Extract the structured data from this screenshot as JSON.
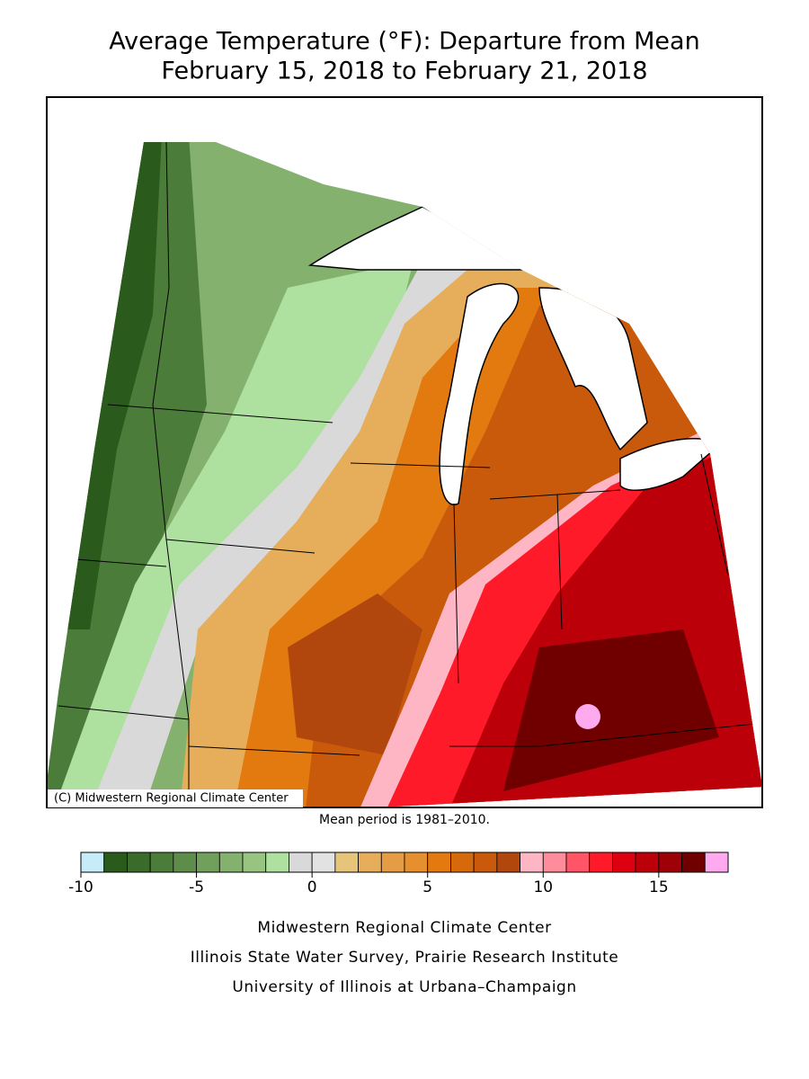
{
  "header": {
    "title": "Average Temperature (°F): Departure from Mean",
    "subtitle": "February 15, 2018 to February 21, 2018"
  },
  "map": {
    "copyright": "(C) Midwestern Regional Climate Center",
    "note": "Mean period is 1981–2010."
  },
  "colorbar": {
    "lim": [
      -10,
      18
    ],
    "ticks": [
      -10,
      -5,
      0,
      5,
      10,
      15
    ],
    "colors": [
      "#c6ecfa",
      "#2a5a1c",
      "#3a6b2a",
      "#4c7c3a",
      "#5e8c4a",
      "#71a05c",
      "#84b26e",
      "#98c482",
      "#aee0a0",
      "#d9d9d9",
      "#e2e2e2",
      "#e6c57a",
      "#e6ad5a",
      "#e49d45",
      "#e58f2e",
      "#e27a10",
      "#d66a0a",
      "#c95a0c",
      "#b2470e",
      "#ffb6c4",
      "#ff8c9a",
      "#ff5566",
      "#ff1a2a",
      "#dd0010",
      "#bb000a",
      "#9e0008",
      "#700000",
      "#ffaaee"
    ]
  },
  "footer": {
    "lines": [
      "Midwestern Regional Climate Center",
      "Illinois State Water Survey, Prairie Research Institute",
      "University of Illinois at Urbana–Champaign"
    ]
  }
}
